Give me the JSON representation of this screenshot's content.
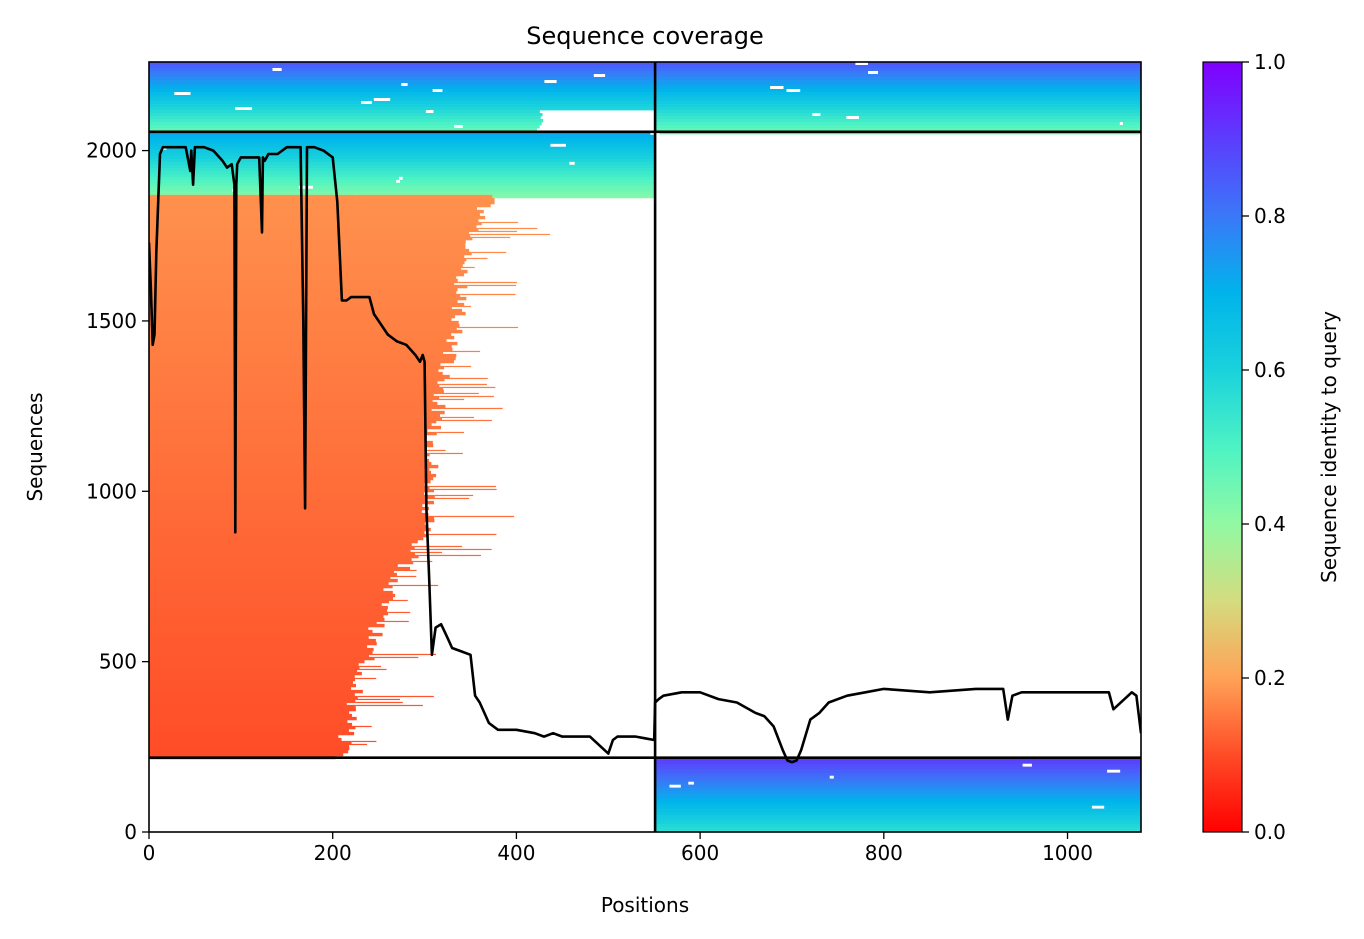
{
  "chart_data": {
    "type": "heatmap",
    "title": "Sequence coverage",
    "xlabel": "Positions",
    "ylabel": "Sequences",
    "xlim": [
      0,
      1080
    ],
    "ylim": [
      0,
      2260
    ],
    "x_ticks": [
      {
        "value": 0,
        "label": "0"
      },
      {
        "value": 200,
        "label": "200"
      },
      {
        "value": 400,
        "label": "400"
      },
      {
        "value": 600,
        "label": "600"
      },
      {
        "value": 800,
        "label": "800"
      },
      {
        "value": 1000,
        "label": "1000"
      }
    ],
    "y_ticks": [
      {
        "value": 0,
        "label": "0"
      },
      {
        "value": 500,
        "label": "500"
      },
      {
        "value": 1000,
        "label": "1000"
      },
      {
        "value": 1500,
        "label": "1500"
      },
      {
        "value": 2000,
        "label": "2000"
      }
    ],
    "colorbar": {
      "label": "Sequence identity to query",
      "colormap": "rainbow_r",
      "range": [
        0.0,
        1.0
      ],
      "ticks": [
        {
          "value": 0.0,
          "label": "0.0"
        },
        {
          "value": 0.2,
          "label": "0.2"
        },
        {
          "value": 0.4,
          "label": "0.4"
        },
        {
          "value": 0.6,
          "label": "0.6"
        },
        {
          "value": 0.8,
          "label": "0.8"
        },
        {
          "value": 1.0,
          "label": "1.0"
        }
      ]
    },
    "chain_boundary_x": 551,
    "block_boundaries_y": [
      218,
      2055
    ],
    "blocks": [
      {
        "x0": 0,
        "x1": 551,
        "y0": 2055,
        "y1": 2260,
        "identity_top": 0.85,
        "identity_bottom": 0.45,
        "coverage_end": 551,
        "ragged_below": 2120,
        "ragged_end": 430
      },
      {
        "x0": 551,
        "x1": 1080,
        "y0": 2055,
        "y1": 2260,
        "identity_top": 0.85,
        "identity_bottom": 0.45,
        "coverage_end": 1080,
        "ragged_below": 0,
        "ragged_end": 1080
      },
      {
        "x0": 0,
        "x1": 551,
        "y0": 1870,
        "y1": 2055,
        "identity_top": 0.72,
        "identity_bottom": 0.42,
        "coverage_end": 551,
        "ragged_below": 0,
        "ragged_end": 551
      },
      {
        "x0": 551,
        "x1": 1080,
        "y0": 0,
        "y1": 218,
        "identity_top": 0.9,
        "identity_bottom": 0.55,
        "coverage_end": 1080,
        "ragged_below": 0,
        "ragged_end": 1080
      }
    ],
    "orange_region": {
      "x0": 0,
      "y0": 218,
      "y1": 1870,
      "identity_top": 0.18,
      "identity_bottom": 0.1,
      "right_edge": [
        [
          1870,
          370
        ],
        [
          1700,
          345
        ],
        [
          1500,
          335
        ],
        [
          1200,
          310
        ],
        [
          900,
          305
        ],
        [
          700,
          260
        ],
        [
          500,
          235
        ],
        [
          300,
          215
        ],
        [
          218,
          210
        ]
      ]
    },
    "series": [
      {
        "name": "",
        "color": "#000000",
        "x": [
          0,
          2,
          4,
          6,
          8,
          10,
          12,
          15,
          20,
          30,
          40,
          45,
          46,
          48,
          50,
          55,
          60,
          70,
          80,
          85,
          90,
          93,
          94,
          95,
          96,
          98,
          100,
          110,
          120,
          123,
          124,
          126,
          128,
          130,
          140,
          150,
          160,
          165,
          168,
          170,
          172,
          175,
          180,
          190,
          200,
          205,
          210,
          215,
          220,
          230,
          240,
          245,
          250,
          260,
          270,
          280,
          290,
          295,
          298,
          300,
          302,
          305,
          308,
          312,
          318,
          325,
          330,
          340,
          350,
          355,
          360,
          370,
          380,
          400,
          420,
          430,
          440,
          450,
          460,
          470,
          480,
          500,
          505,
          510,
          520,
          530,
          540,
          550,
          551,
          555,
          560,
          580,
          600,
          620,
          640,
          660,
          670,
          680,
          690,
          695,
          700,
          705,
          710,
          720,
          730,
          740,
          760,
          780,
          800,
          850,
          900,
          930,
          935,
          940,
          950,
          1000,
          1040,
          1045,
          1050,
          1070,
          1075,
          1080
        ],
        "y": [
          1730,
          1600,
          1430,
          1460,
          1700,
          1850,
          1990,
          2010,
          2010,
          2010,
          2010,
          1940,
          2000,
          1900,
          2010,
          2010,
          2010,
          2000,
          1970,
          1950,
          1960,
          1900,
          880,
          1900,
          1960,
          1970,
          1980,
          1980,
          1980,
          1760,
          1980,
          1970,
          1980,
          1990,
          1990,
          2010,
          2010,
          2010,
          1500,
          950,
          2010,
          2010,
          2010,
          2000,
          1980,
          1850,
          1560,
          1560,
          1570,
          1570,
          1570,
          1520,
          1500,
          1460,
          1440,
          1430,
          1400,
          1380,
          1400,
          1380,
          950,
          750,
          520,
          600,
          610,
          570,
          540,
          530,
          520,
          400,
          380,
          320,
          300,
          300,
          290,
          280,
          290,
          280,
          280,
          280,
          280,
          230,
          270,
          280,
          280,
          280,
          275,
          270,
          380,
          390,
          400,
          410,
          410,
          390,
          380,
          350,
          340,
          310,
          240,
          210,
          205,
          210,
          240,
          330,
          350,
          380,
          400,
          410,
          420,
          410,
          420,
          420,
          330,
          400,
          410,
          410,
          410,
          410,
          360,
          410,
          400,
          290
        ]
      }
    ]
  }
}
